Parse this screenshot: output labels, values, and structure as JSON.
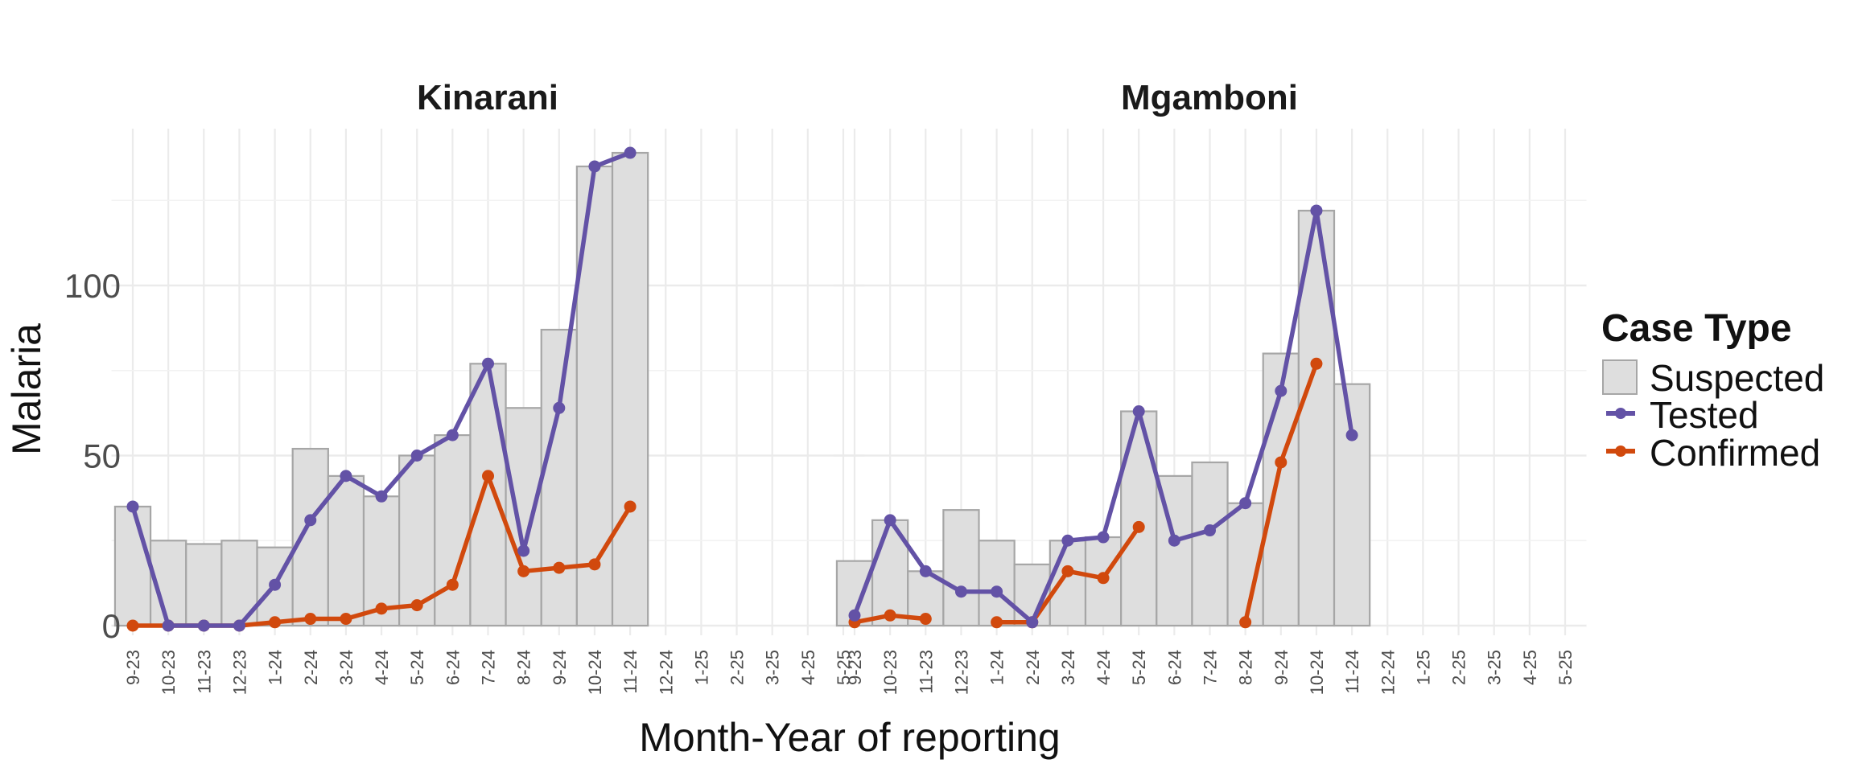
{
  "chart_data": {
    "type": "bar",
    "xlabel": "Month-Year of reporting",
    "ylabel": "Malaria",
    "ylim": [
      0,
      145
    ],
    "yticks": [
      0,
      50,
      100
    ],
    "grid": true,
    "legend_placement": "right",
    "legend": {
      "title": "Case Type",
      "entries": [
        {
          "name": "Suspected",
          "kind": "bar"
        },
        {
          "name": "Tested",
          "kind": "line"
        },
        {
          "name": "Confirmed",
          "kind": "line"
        }
      ]
    },
    "colors": {
      "Suspected_fill": "#dedede",
      "Suspected_stroke": "#a6a6a6",
      "Tested": "#6352a6",
      "Confirmed": "#d1490d"
    },
    "categories": [
      "9-23",
      "10-23",
      "11-23",
      "12-23",
      "1-24",
      "2-24",
      "3-24",
      "4-24",
      "5-24",
      "6-24",
      "7-24",
      "8-24",
      "9-24",
      "10-24",
      "11-24",
      "12-24",
      "1-25",
      "2-25",
      "3-25",
      "4-25",
      "5-25"
    ],
    "facets": [
      {
        "title": "Kinarani",
        "series": [
          {
            "name": "Suspected",
            "values": [
              35,
              25,
              24,
              25,
              23,
              52,
              44,
              38,
              50,
              56,
              77,
              64,
              87,
              135,
              139,
              null,
              null,
              null,
              null,
              null,
              null
            ]
          },
          {
            "name": "Tested",
            "values": [
              35,
              0,
              0,
              0,
              12,
              31,
              44,
              38,
              50,
              56,
              77,
              22,
              64,
              135,
              139,
              null,
              null,
              null,
              null,
              null,
              null
            ]
          },
          {
            "name": "Confirmed",
            "values": [
              0,
              0,
              0,
              0,
              1,
              2,
              2,
              5,
              6,
              12,
              44,
              16,
              17,
              18,
              35,
              null,
              null,
              null,
              null,
              null,
              null
            ]
          }
        ]
      },
      {
        "title": "Mgamboni",
        "series": [
          {
            "name": "Suspected",
            "values": [
              19,
              31,
              16,
              34,
              25,
              18,
              25,
              26,
              63,
              44,
              48,
              36,
              80,
              122,
              71,
              null,
              null,
              null,
              null,
              null,
              null
            ]
          },
          {
            "name": "Tested",
            "values": [
              3,
              31,
              16,
              10,
              10,
              1,
              25,
              26,
              63,
              25,
              28,
              36,
              69,
              122,
              56,
              null,
              null,
              null,
              null,
              null,
              null
            ]
          },
          {
            "name": "Confirmed",
            "values": [
              1,
              3,
              2,
              null,
              1,
              1,
              16,
              14,
              29,
              null,
              null,
              1,
              48,
              77,
              null,
              null,
              null,
              null,
              null,
              null,
              null
            ]
          }
        ]
      }
    ]
  }
}
